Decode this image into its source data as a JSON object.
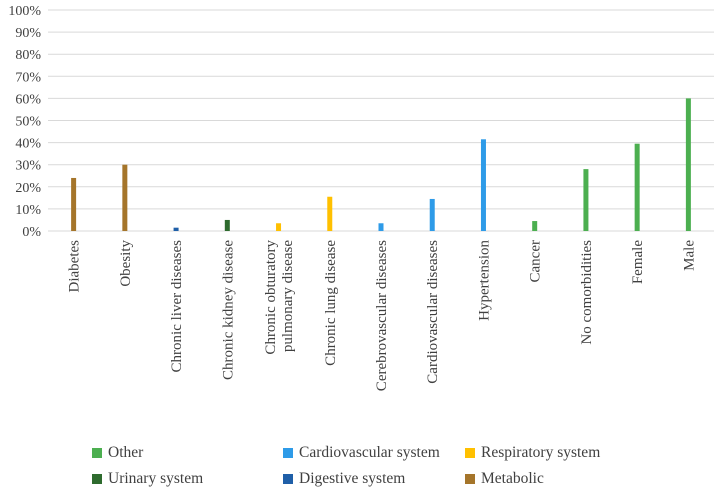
{
  "chart_data": {
    "type": "bar",
    "ylim": [
      0,
      100
    ],
    "y_ticks": [
      "0%",
      "10%",
      "20%",
      "30%",
      "40%",
      "50%",
      "60%",
      "70%",
      "80%",
      "90%",
      "100%"
    ],
    "grid": true,
    "legend_position": "bottom",
    "categories": [
      "Diabetes",
      "Obesity",
      "Chronic liver diseases",
      "Chronic kidney disease",
      "Chronic obturatory pulmonary disease",
      "Chronic lung disease",
      "Cerebrovascular diseases",
      "Cardiovascular diseases",
      "Hypertension",
      "Cancer",
      "No comorbidities",
      "Female",
      "Male"
    ],
    "category_lines": [
      [
        "Diabetes"
      ],
      [
        "Obesity"
      ],
      [
        "Chronic liver diseases"
      ],
      [
        "Chronic kidney disease"
      ],
      [
        "Chronic obturatory",
        "pulmonary disease"
      ],
      [
        "Chronic lung disease"
      ],
      [
        "Cerebrovascular diseases"
      ],
      [
        "Cardiovascular diseases"
      ],
      [
        "Hypertension"
      ],
      [
        "Cancer"
      ],
      [
        "No comorbidities"
      ],
      [
        "Female"
      ],
      [
        "Male"
      ]
    ],
    "series": [
      {
        "name": "Other",
        "color": "#4caf50",
        "values": [
          null,
          null,
          null,
          null,
          null,
          null,
          null,
          null,
          null,
          4.5,
          28,
          39.5,
          60
        ]
      },
      {
        "name": "Cardiovascular system",
        "color": "#2e9be8",
        "values": [
          null,
          null,
          null,
          null,
          null,
          null,
          3.5,
          14.5,
          41.5,
          null,
          null,
          null,
          null
        ]
      },
      {
        "name": "Respiratory system",
        "color": "#ffc000",
        "values": [
          null,
          null,
          null,
          null,
          3.5,
          15.5,
          null,
          null,
          null,
          null,
          null,
          null,
          null
        ]
      },
      {
        "name": "Urinary system",
        "color": "#2e6b2e",
        "values": [
          null,
          null,
          null,
          5,
          null,
          null,
          null,
          null,
          null,
          null,
          null,
          null,
          null
        ]
      },
      {
        "name": "Digestive system",
        "color": "#1f5fa8",
        "values": [
          null,
          null,
          1.5,
          null,
          null,
          null,
          null,
          null,
          null,
          null,
          null,
          null,
          null
        ]
      },
      {
        "name": "Metabolic",
        "color": "#a5752a",
        "values": [
          24,
          30,
          null,
          null,
          null,
          null,
          null,
          null,
          null,
          null,
          null,
          null,
          null
        ]
      }
    ]
  }
}
